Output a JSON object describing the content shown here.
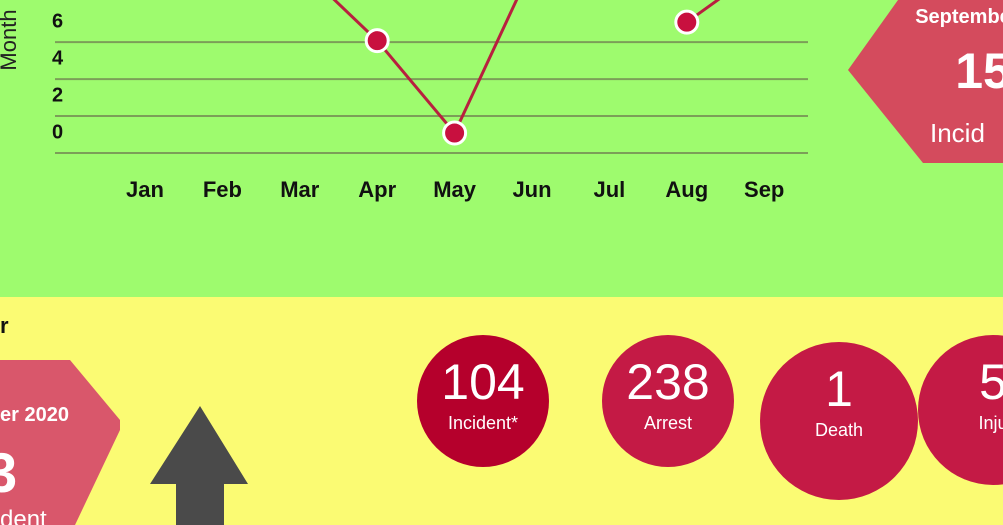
{
  "chart_data": {
    "type": "line",
    "y_label": "Month",
    "categories": [
      "Jan",
      "Feb",
      "Mar",
      "Apr",
      "May",
      "Jun",
      "Jul",
      "Aug",
      "Sep"
    ],
    "values": [
      null,
      null,
      9,
      5,
      0,
      9,
      null,
      6,
      9
    ],
    "color": "#b8203f",
    "ylim": [
      0,
      7.2
    ],
    "yticks": [
      0,
      2,
      4,
      6
    ],
    "grid": true
  },
  "highlight_top": {
    "month": "Septembe",
    "value": "15",
    "label": "Incid"
  },
  "section_title": "r",
  "highlight_bottom": {
    "month": "er 2020",
    "value": "3",
    "label": "dent"
  },
  "stats": [
    {
      "value": "104",
      "label": "Incident*"
    },
    {
      "value": "238",
      "label": "Arrest"
    },
    {
      "value": "1",
      "label": "Death"
    },
    {
      "value": "5",
      "label": "Inju"
    }
  ]
}
